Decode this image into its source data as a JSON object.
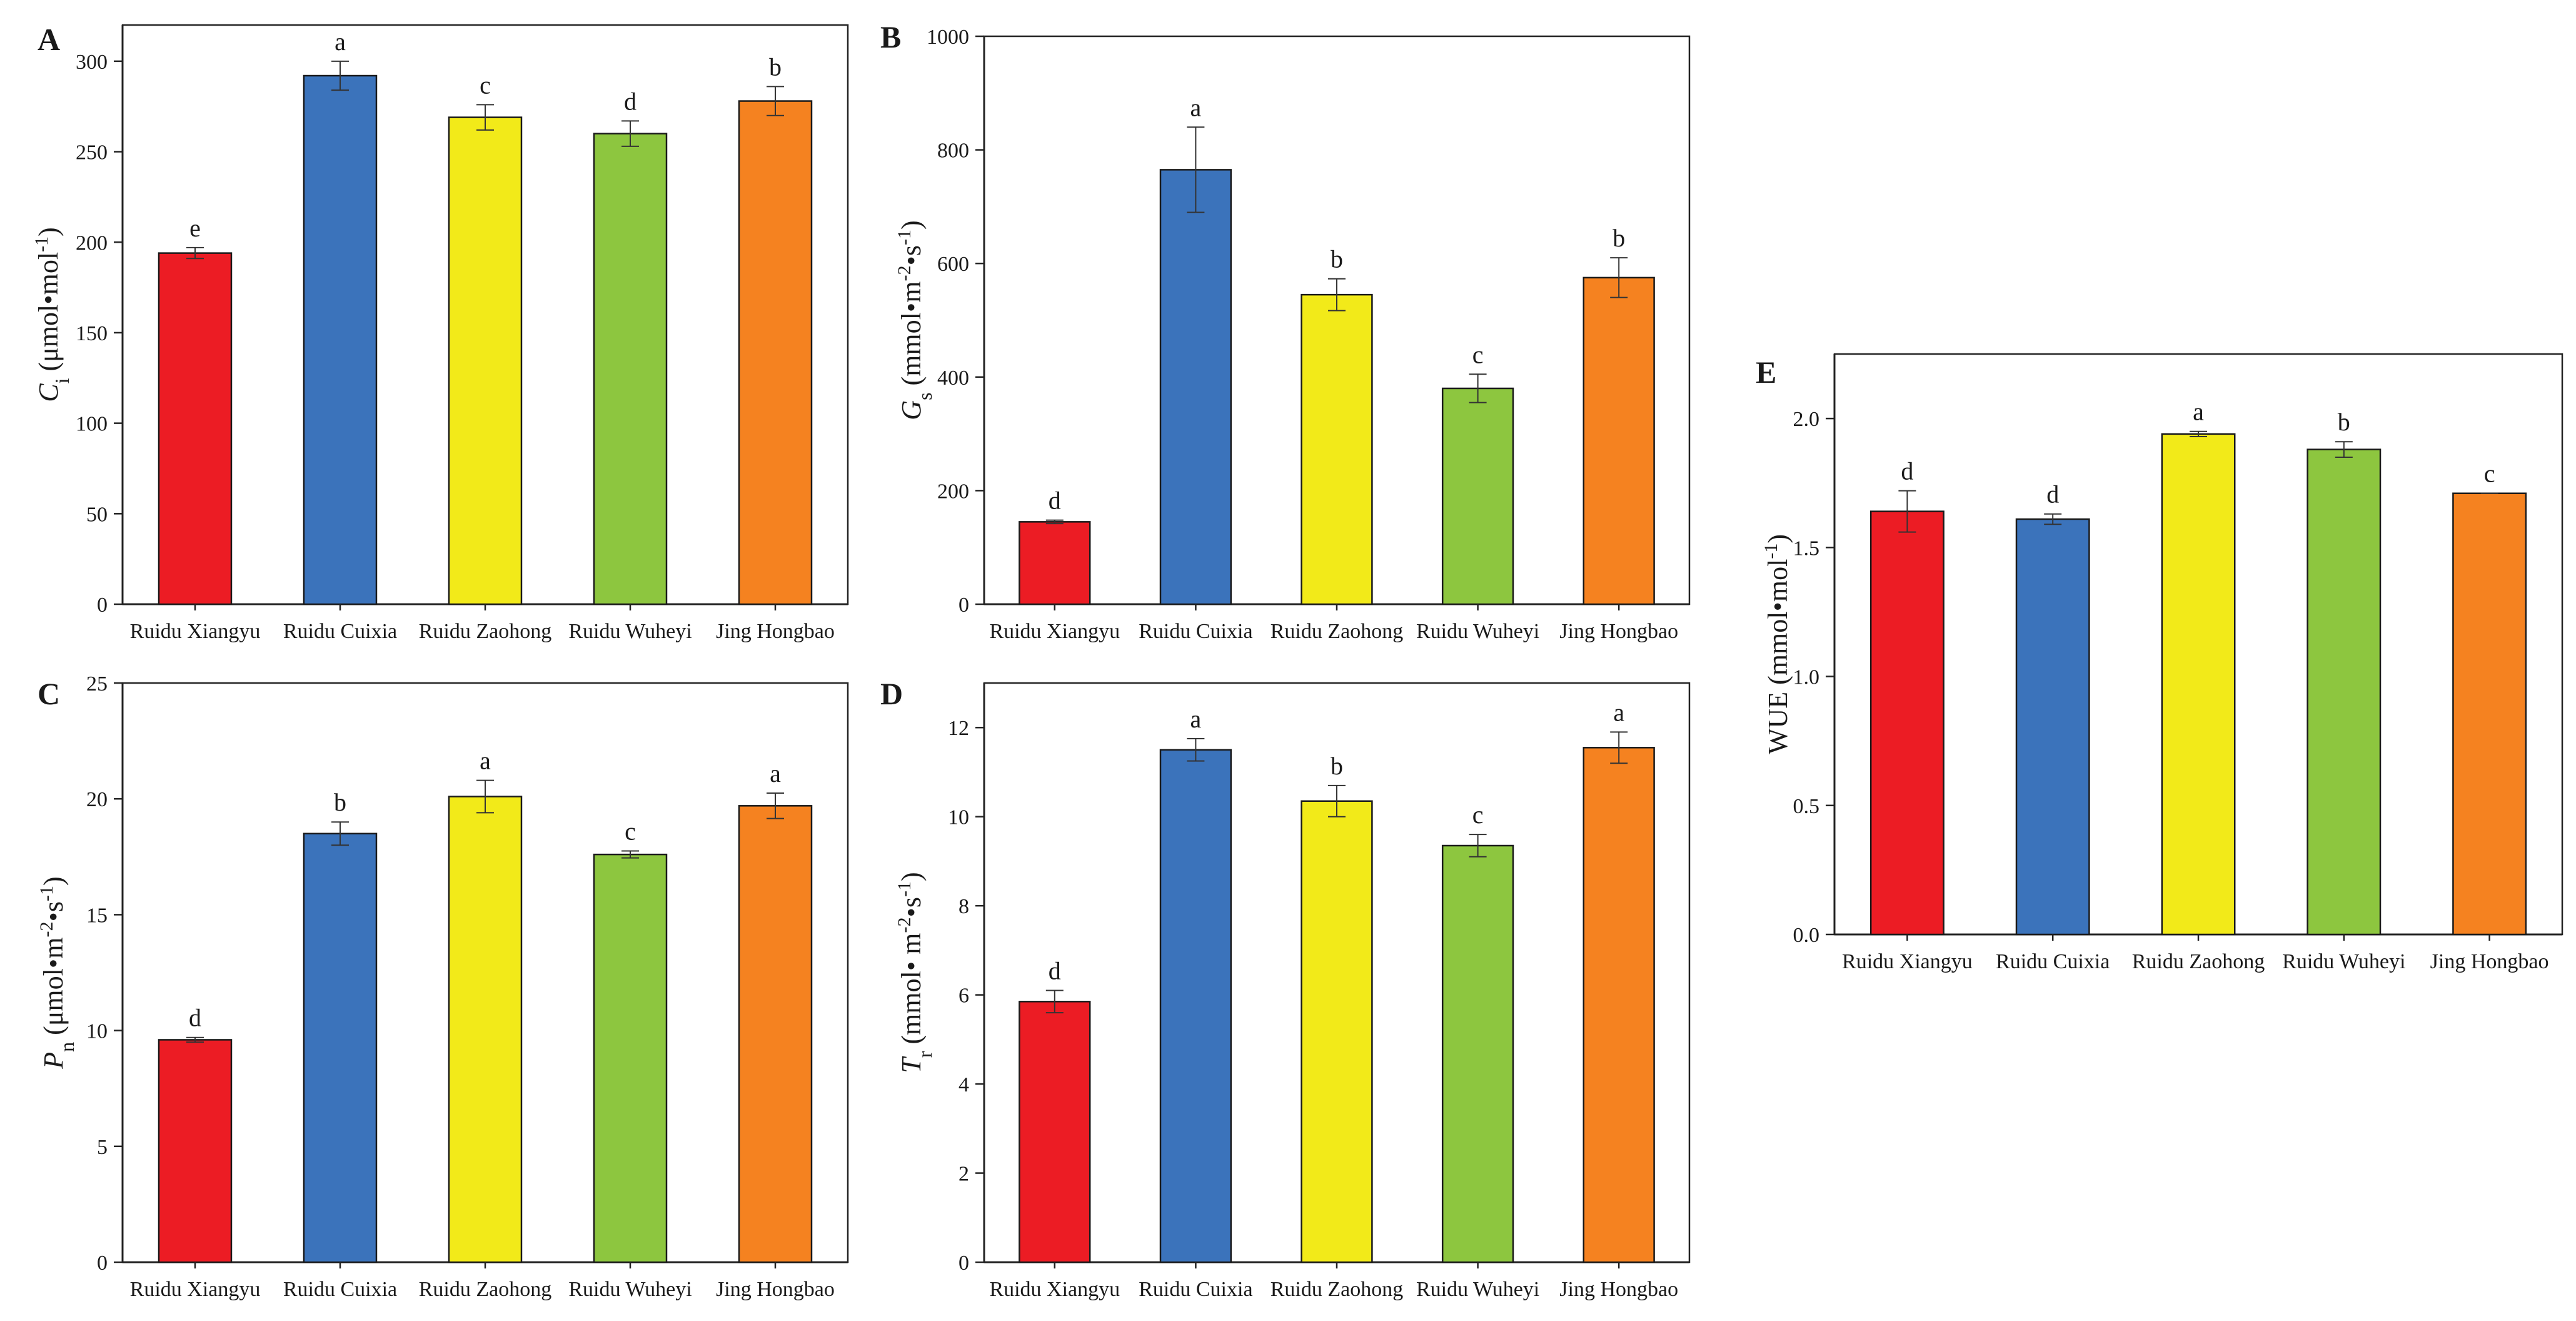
{
  "figure": {
    "categories": [
      "Ruidu Xiangyu",
      "Ruidu Cuixia",
      "Ruidu Zaohong",
      "Ruidu Wuheyi",
      "Jing Hongbao"
    ],
    "bar_colors": [
      "#ec1c24",
      "#3b73bb",
      "#f2ea19",
      "#8dc63f",
      "#f58220"
    ]
  },
  "chart_data": [
    {
      "id": "A",
      "panel_label": "A",
      "type": "bar",
      "categories": [
        "Ruidu Xiangyu",
        "Ruidu Cuixia",
        "Ruidu Zaohong",
        "Ruidu Wuheyi",
        "Jing Hongbao"
      ],
      "values": [
        194,
        292,
        269,
        260,
        278
      ],
      "errors": [
        3,
        8,
        7,
        7,
        8
      ],
      "significance": [
        "e",
        "a",
        "c",
        "d",
        "b"
      ],
      "ylabel": {
        "symbol": "C",
        "sub": "i",
        "unit": "(μmol•mol",
        "sup": "-1",
        "close": ")"
      },
      "ylim": [
        0,
        320
      ],
      "yticks": [
        0,
        50,
        100,
        150,
        200,
        250,
        300
      ]
    },
    {
      "id": "B",
      "panel_label": "B",
      "type": "bar",
      "categories": [
        "Ruidu Xiangyu",
        "Ruidu Cuixia",
        "Ruidu Zaohong",
        "Ruidu Wuheyi",
        "Jing Hongbao"
      ],
      "values": [
        145,
        765,
        545,
        380,
        575
      ],
      "errors": [
        3,
        75,
        28,
        25,
        35
      ],
      "significance": [
        "d",
        "a",
        "b",
        "c",
        "b"
      ],
      "ylabel": {
        "symbol": "G",
        "sub": "s",
        "unit": "(mmol•m",
        "sup": "-2",
        "unit2": "•s",
        "sup2": "-1",
        "close": ")"
      },
      "ylim": [
        0,
        1000
      ],
      "yticks": [
        0,
        200,
        400,
        600,
        800,
        1000
      ]
    },
    {
      "id": "C",
      "panel_label": "C",
      "type": "bar",
      "categories": [
        "Ruidu Xiangyu",
        "Ruidu Cuixia",
        "Ruidu Zaohong",
        "Ruidu Wuheyi",
        "Jing Hongbao"
      ],
      "values": [
        9.6,
        18.5,
        20.1,
        17.6,
        19.7
      ],
      "errors": [
        0.1,
        0.5,
        0.7,
        0.15,
        0.55
      ],
      "significance": [
        "d",
        "b",
        "a",
        "c",
        "a"
      ],
      "ylabel": {
        "symbol": "P",
        "sub": "n",
        "unit": "(μmol•m",
        "sup": "-2",
        "unit2": "•s",
        "sup2": "-1",
        "close": ")"
      },
      "ylim": [
        0,
        25
      ],
      "yticks": [
        0,
        5,
        10,
        15,
        20,
        25
      ]
    },
    {
      "id": "D",
      "panel_label": "D",
      "type": "bar",
      "categories": [
        "Ruidu Xiangyu",
        "Ruidu Cuixia",
        "Ruidu Zaohong",
        "Ruidu Wuheyi",
        "Jing Hongbao"
      ],
      "values": [
        5.85,
        11.5,
        10.35,
        9.35,
        11.55
      ],
      "errors": [
        0.25,
        0.25,
        0.35,
        0.25,
        0.35
      ],
      "significance": [
        "d",
        "a",
        "b",
        "c",
        "a"
      ],
      "ylabel": {
        "symbol": "T",
        "sub": "r",
        "unit": "(mmol• m",
        "sup": "-2",
        "unit2": "•s",
        "sup2": "-1",
        "close": ")"
      },
      "ylim": [
        0,
        13
      ],
      "yticks": [
        0,
        2,
        4,
        6,
        8,
        10,
        12
      ]
    },
    {
      "id": "E",
      "panel_label": "E",
      "type": "bar",
      "categories": [
        "Ruidu Xiangyu",
        "Ruidu Cuixia",
        "Ruidu Zaohong",
        "Ruidu Wuheyi",
        "Jing Hongbao"
      ],
      "values": [
        1.64,
        1.61,
        1.94,
        1.88,
        1.71
      ],
      "errors": [
        0.08,
        0.02,
        0.01,
        0.03,
        0.0
      ],
      "significance": [
        "d",
        "d",
        "a",
        "b",
        "c"
      ],
      "ylabel": {
        "symbol": "",
        "sub": "",
        "unit": "WUE (mmol•mol",
        "sup": "-1",
        "close": ")"
      },
      "ylim": [
        0,
        2.25
      ],
      "yticks": [
        "0.0",
        "0.5",
        "1.0",
        "1.5",
        "2.0"
      ]
    }
  ]
}
